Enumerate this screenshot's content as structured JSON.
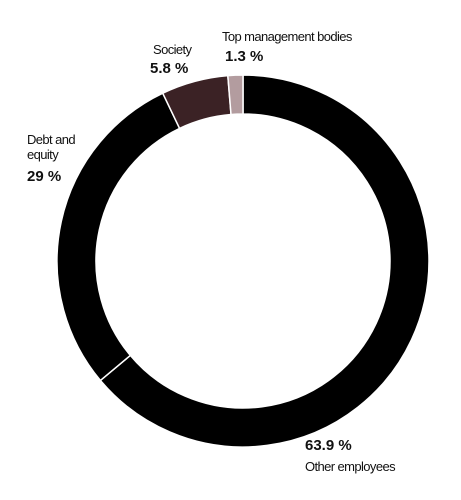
{
  "chart_data": {
    "type": "donut",
    "categories": [
      "Other employees",
      "Debt and equity",
      "Society",
      "Top management bodies"
    ],
    "values": [
      63.9,
      29,
      5.8,
      1.3
    ],
    "value_labels": [
      "63.9 %",
      "29 %",
      "5.8 %",
      "1.3 %"
    ],
    "colors": [
      "#000000",
      "#000000",
      "#3b2225",
      "#b39c9f"
    ]
  }
}
